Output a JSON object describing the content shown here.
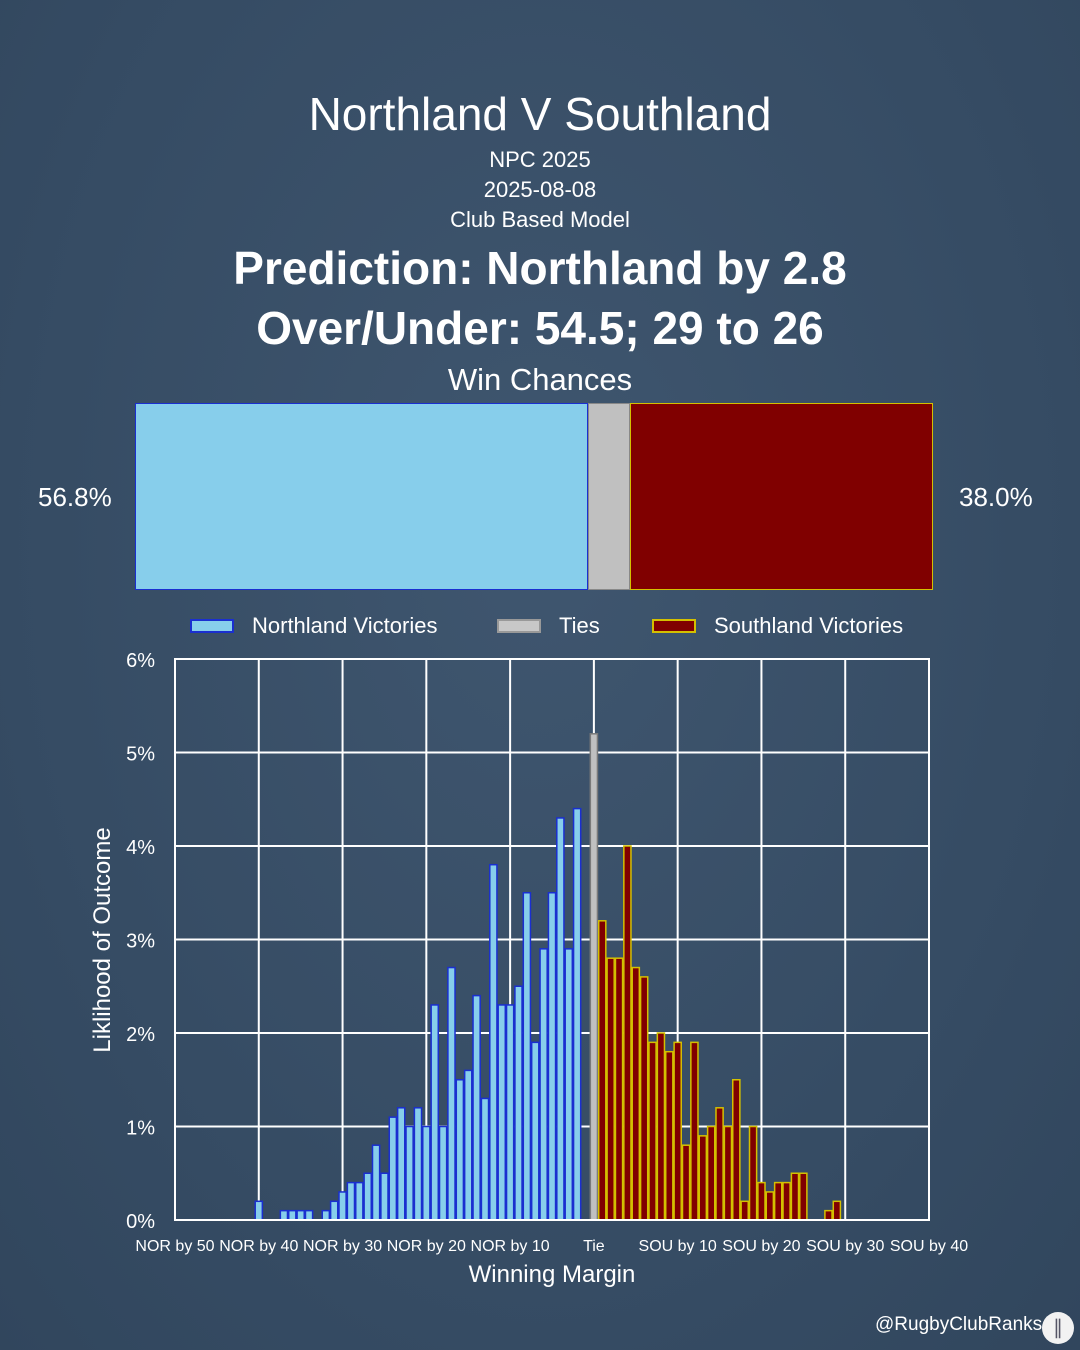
{
  "title": "Northland V Southland",
  "competition": "NPC 2025",
  "date": "2025-08-08",
  "model": "Club Based Model",
  "prediction": "Prediction: Northland by 2.8",
  "over_under": "Over/Under: 54.5; 29 to 26",
  "win_chances": {
    "title": "Win Chances",
    "home_label": "56.8%",
    "away_label": "38.0%",
    "home": 56.8,
    "tie": 5.2,
    "away": 38.0
  },
  "legend": {
    "home": "Northland Victories",
    "tie": "Ties",
    "away": "Southland Victories"
  },
  "colors": {
    "home_fill": "#87ceeb",
    "home_edge": "#1a2fd0",
    "tie_fill": "#c0c0c0",
    "away_fill": "#800000",
    "away_edge": "#d4c000"
  },
  "handle": "@RugbyClubRanks",
  "chart_data": {
    "type": "bar",
    "xlabel": "Winning Margin",
    "ylabel": "Liklihood of Outcome",
    "xlim": [
      -50,
      40
    ],
    "ylim": [
      0,
      6
    ],
    "grid": true,
    "yticks": [
      "0%",
      "1%",
      "2%",
      "3%",
      "4%",
      "5%",
      "6%"
    ],
    "xticks": [
      {
        "v": -50,
        "label": "NOR by 50"
      },
      {
        "v": -40,
        "label": "NOR by 40"
      },
      {
        "v": -30,
        "label": "NOR by 30"
      },
      {
        "v": -20,
        "label": "NOR by 20"
      },
      {
        "v": -10,
        "label": "NOR by 10"
      },
      {
        "v": 0,
        "label": "Tie"
      },
      {
        "v": 10,
        "label": "SOU by 10"
      },
      {
        "v": 20,
        "label": "SOU by 20"
      },
      {
        "v": 30,
        "label": "SOU by 30"
      },
      {
        "v": 40,
        "label": "SOU by 40"
      }
    ],
    "series": [
      {
        "name": "Northland Victories",
        "margins": [
          -40,
          -39,
          -38,
          -37,
          -36,
          -35,
          -34,
          -33,
          -32,
          -31,
          -30,
          -29,
          -28,
          -27,
          -26,
          -25,
          -24,
          -23,
          -22,
          -21,
          -20,
          -19,
          -18,
          -17,
          -16,
          -15,
          -14,
          -13,
          -12,
          -11,
          -10,
          -9,
          -8,
          -7,
          -6,
          -5,
          -4,
          -3,
          -2,
          -1
        ],
        "values": [
          0.2,
          0,
          0,
          0.1,
          0.1,
          0.1,
          0.1,
          0,
          0.1,
          0.2,
          0.3,
          0.4,
          0.4,
          0.5,
          0.8,
          0.5,
          1.1,
          1.2,
          1.0,
          1.2,
          1.0,
          2.3,
          1.0,
          2.7,
          1.5,
          1.6,
          2.4,
          1.3,
          3.8,
          2.3,
          2.3,
          2.5,
          3.5,
          1.9,
          2.9,
          3.5,
          4.3,
          2.9,
          4.4,
          0
        ]
      },
      {
        "name": "Ties",
        "margins": [
          0
        ],
        "values": [
          5.2
        ]
      },
      {
        "name": "Southland Victories",
        "margins": [
          1,
          2,
          3,
          4,
          5,
          6,
          7,
          8,
          9,
          10,
          11,
          12,
          13,
          14,
          15,
          16,
          17,
          18,
          19,
          20,
          21,
          22,
          23,
          24,
          25,
          26,
          27,
          28,
          29,
          30
        ],
        "values": [
          3.2,
          2.8,
          2.8,
          4.0,
          2.7,
          2.6,
          1.9,
          2.0,
          1.8,
          1.9,
          0.8,
          1.9,
          0.9,
          1.0,
          1.2,
          1.0,
          1.5,
          0.2,
          1.0,
          0.4,
          0.3,
          0.4,
          0.4,
          0.5,
          0.5,
          0,
          0,
          0.1,
          0.2,
          0
        ]
      }
    ]
  }
}
